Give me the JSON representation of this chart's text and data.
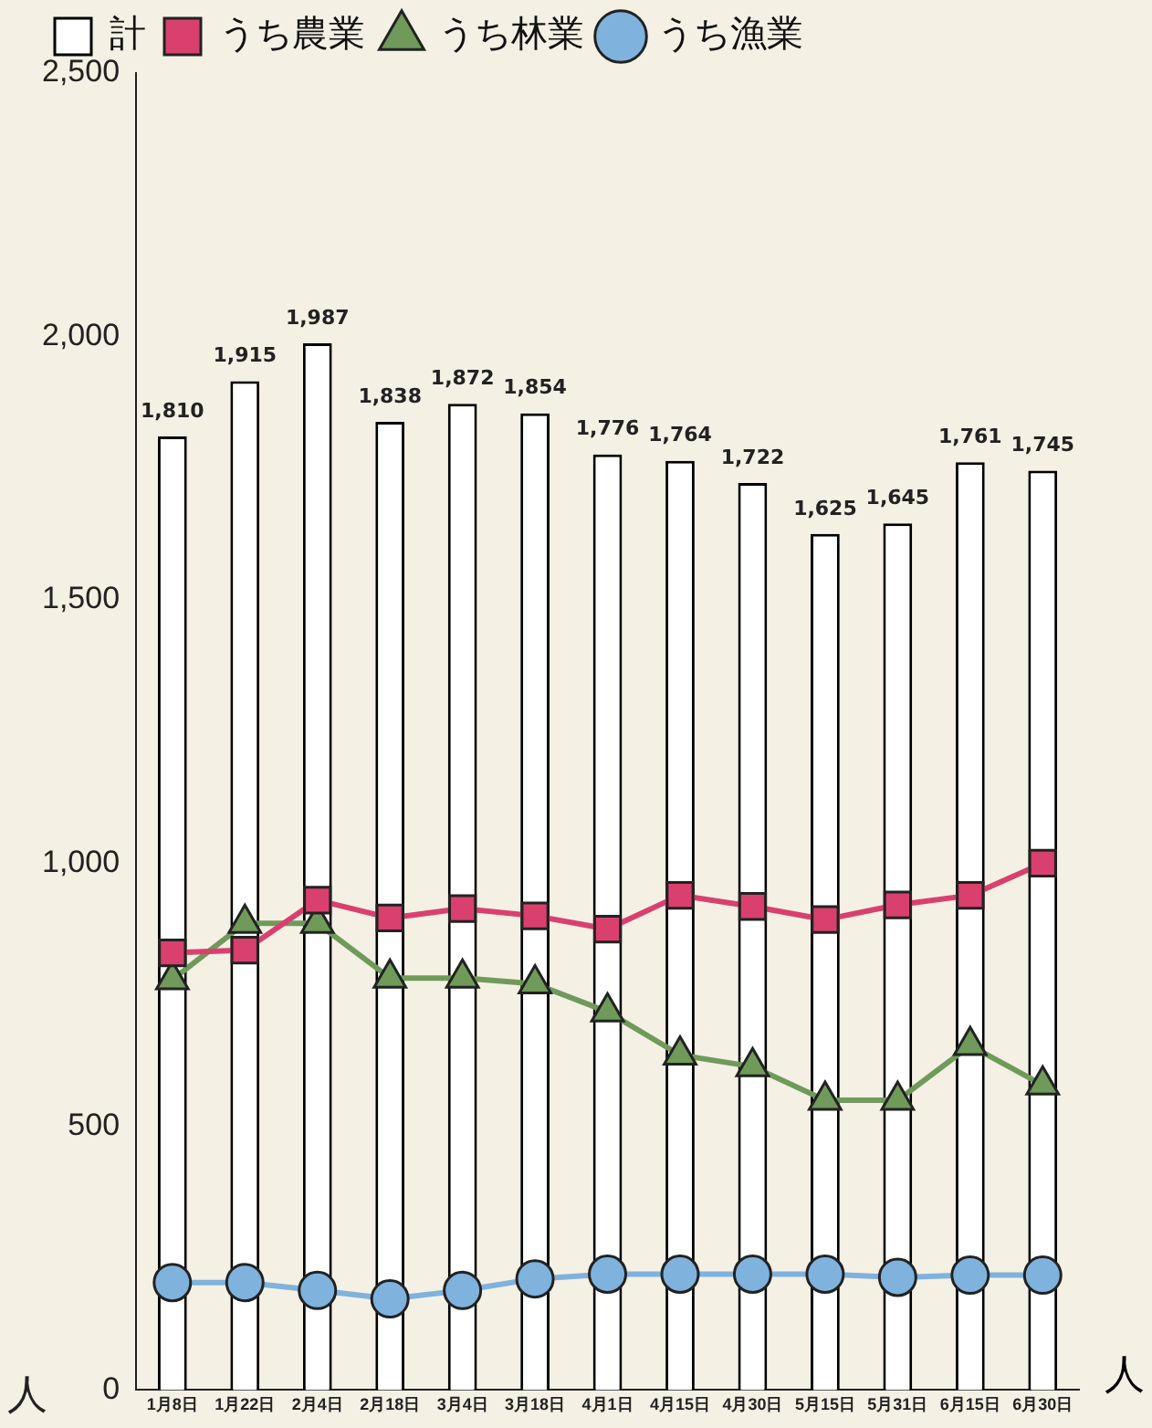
{
  "chart_data": {
    "type": "bar",
    "ylabel": "人",
    "annotations": [
      "人"
    ],
    "categories": [
      "1月8日",
      "1月22日",
      "2月4日",
      "2月18日",
      "3月4日",
      "3月18日",
      "4月1日",
      "4月15日",
      "4月30日",
      "5月15日",
      "5月31日",
      "6月15日",
      "6月30日"
    ],
    "series": [
      {
        "name": "計",
        "color": "#ffffff",
        "values": [
          1810,
          1915,
          1987,
          1838,
          1872,
          1854,
          1776,
          1764,
          1722,
          1625,
          1645,
          1761,
          1745
        ],
        "value_labels": [
          "1,810",
          "1,915",
          "1,987",
          "1,838",
          "1,872",
          "1,854",
          "1,776",
          "1,764",
          "1,722",
          "1,625",
          "1,645",
          "1,761",
          "1,745"
        ]
      },
      {
        "name": "うち農業",
        "type": "line",
        "marker": "square",
        "color": "#d9406e",
        "values": [
          830,
          835,
          930,
          896,
          914,
          900,
          875,
          939,
          918,
          893,
          921,
          939,
          1000
        ]
      },
      {
        "name": "うち林業",
        "type": "line",
        "marker": "triangle",
        "color": "#6f9a5a",
        "values": [
          779,
          886,
          886,
          782,
          782,
          771,
          718,
          636,
          614,
          550,
          550,
          654,
          579
        ]
      },
      {
        "name": "うち漁業",
        "type": "line",
        "marker": "circle",
        "color": "#7fb2dd",
        "values": [
          204,
          204,
          189,
          173,
          189,
          211,
          220,
          220,
          220,
          220,
          214,
          218,
          218
        ]
      }
    ],
    "ylim": [
      0,
      2500
    ],
    "yticks": [
      0,
      {
        "value": 500,
        "label": "500"
      },
      {
        "value": 1000,
        "label": "1,000"
      },
      {
        "value": 1500,
        "label": "1,500"
      },
      {
        "value": 2000,
        "label": "2,000"
      },
      {
        "value": 2500,
        "label": "2,500"
      }
    ],
    "grid": false,
    "legend": "top left"
  }
}
